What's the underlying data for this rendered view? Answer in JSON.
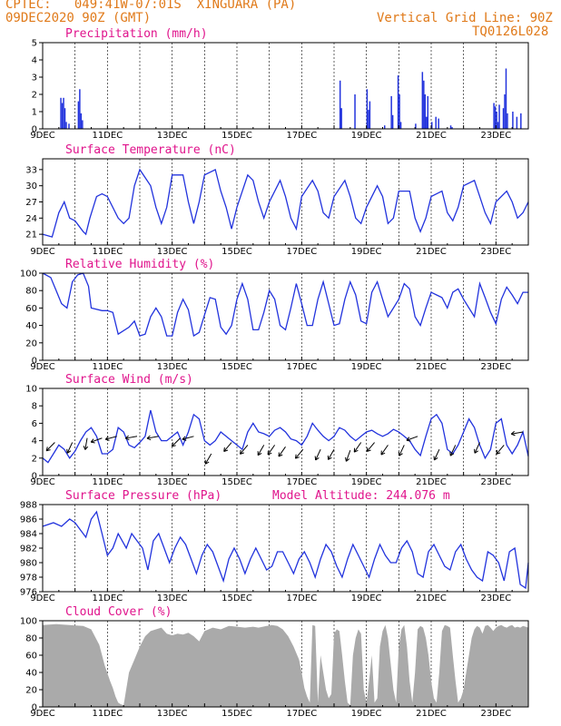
{
  "header": {
    "line1": "CPTEC:   049:41W-07:01S  XINGUARA (PA)",
    "line2": "09DEC2020 90Z (GMT)",
    "grid_note": "Vertical Grid Line: 90Z",
    "code": "TQ0126L028"
  },
  "colors": {
    "header": "#e07a1a",
    "title": "#e0148c",
    "series": "#2233dd",
    "cloud": "#aaaaaa"
  },
  "x_labels": [
    "9DEC",
    "11DEC",
    "13DEC",
    "15DEC",
    "17DEC",
    "19DEC",
    "21DEC",
    "23DEC"
  ],
  "chart_data": [
    {
      "type": "bar",
      "title": "Precipitation (mm/h)",
      "ylim": [
        0,
        5
      ],
      "yticks": [
        0,
        1,
        2,
        3,
        4,
        5
      ],
      "hours": 360,
      "bars": [
        [
          13,
          1.8
        ],
        [
          14,
          1.5
        ],
        [
          15,
          1.8
        ],
        [
          16,
          1.2
        ],
        [
          17,
          0.4
        ],
        [
          19,
          0.3
        ],
        [
          26,
          1.6
        ],
        [
          27,
          2.3
        ],
        [
          28,
          0.9
        ],
        [
          29,
          0.5
        ],
        [
          220,
          2.8
        ],
        [
          221,
          1.2
        ],
        [
          231,
          2.0
        ],
        [
          240,
          2.3
        ],
        [
          241,
          1.1
        ],
        [
          242,
          1.6
        ],
        [
          253,
          0.2
        ],
        [
          258,
          1.9
        ],
        [
          259,
          0.8
        ],
        [
          263,
          3.1
        ],
        [
          264,
          2.0
        ],
        [
          265,
          0.4
        ],
        [
          276,
          0.3
        ],
        [
          281,
          3.3
        ],
        [
          282,
          2.8
        ],
        [
          283,
          2.0
        ],
        [
          284,
          0.7
        ],
        [
          285,
          1.9
        ],
        [
          288,
          0.4
        ],
        [
          291,
          0.7
        ],
        [
          293,
          0.6
        ],
        [
          302,
          0.2
        ],
        [
          303,
          0.1
        ],
        [
          334,
          1.5
        ],
        [
          335,
          1.3
        ],
        [
          336,
          1.0
        ],
        [
          337,
          0.4
        ],
        [
          338,
          1.4
        ],
        [
          341,
          1.2
        ],
        [
          342,
          2.0
        ],
        [
          343,
          3.5
        ],
        [
          344,
          0.9
        ],
        [
          348,
          1.0
        ],
        [
          351,
          0.7
        ],
        [
          354,
          0.9
        ]
      ]
    },
    {
      "type": "line",
      "title": "Surface Temperature (nC)",
      "ylim": [
        19,
        35
      ],
      "yticks": [
        21,
        24,
        27,
        30,
        33
      ],
      "x": [
        0,
        7,
        12,
        16,
        20,
        24,
        27,
        30,
        32,
        35,
        40,
        44,
        48,
        56,
        60,
        64,
        68,
        72,
        80,
        84,
        88,
        92,
        96,
        104,
        108,
        112,
        116,
        120,
        128,
        132,
        136,
        140,
        144,
        152,
        156,
        160,
        164,
        168,
        176,
        180,
        184,
        188,
        192,
        200,
        204,
        208,
        212,
        216,
        224,
        228,
        232,
        236,
        240,
        248,
        252,
        256,
        260,
        264,
        272,
        276,
        280,
        284,
        288,
        296,
        300,
        304,
        308,
        312,
        320,
        324,
        328,
        332,
        336,
        344,
        348,
        352,
        356,
        360
      ],
      "y": [
        21,
        20.5,
        25,
        27,
        24,
        23.5,
        22.5,
        21.5,
        21,
        24,
        28,
        28.5,
        28,
        24,
        23,
        24,
        30,
        33,
        30,
        26,
        23,
        26,
        32,
        32,
        27,
        23,
        27,
        32,
        33,
        29,
        26,
        22,
        26,
        32,
        31,
        27,
        24,
        27,
        31,
        28,
        24,
        22,
        28,
        31,
        29,
        25,
        24,
        28,
        31,
        28,
        24,
        23,
        26,
        30,
        28,
        23,
        24,
        29,
        29,
        24,
        21.5,
        24,
        28,
        29,
        25,
        23.5,
        26,
        30,
        31,
        28,
        25,
        23,
        27,
        29,
        27,
        24,
        25,
        27
      ]
    },
    {
      "type": "line",
      "title": "Relative Humidity (%)",
      "ylim": [
        0,
        100
      ],
      "yticks": [
        0,
        20,
        40,
        60,
        80,
        100
      ],
      "x": [
        0,
        6,
        10,
        14,
        18,
        22,
        26,
        30,
        34,
        36,
        44,
        48,
        52,
        56,
        64,
        68,
        72,
        76,
        80,
        84,
        88,
        92,
        96,
        100,
        104,
        108,
        112,
        116,
        120,
        124,
        128,
        132,
        136,
        140,
        144,
        148,
        152,
        156,
        160,
        164,
        168,
        172,
        176,
        180,
        184,
        188,
        192,
        196,
        200,
        204,
        208,
        212,
        216,
        220,
        224,
        228,
        232,
        236,
        240,
        244,
        248,
        252,
        256,
        260,
        264,
        268,
        272,
        276,
        280,
        284,
        288,
        292,
        296,
        300,
        304,
        308,
        312,
        316,
        320,
        324,
        328,
        332,
        336,
        340,
        344,
        348,
        352,
        356,
        360
      ],
      "y": [
        100,
        95,
        80,
        65,
        60,
        90,
        98,
        100,
        85,
        60,
        57,
        57,
        55,
        30,
        38,
        45,
        28,
        30,
        50,
        60,
        50,
        28,
        28,
        55,
        70,
        58,
        28,
        32,
        52,
        72,
        70,
        38,
        30,
        40,
        70,
        88,
        70,
        35,
        35,
        55,
        80,
        70,
        40,
        35,
        60,
        88,
        65,
        40,
        40,
        70,
        90,
        65,
        40,
        42,
        70,
        90,
        75,
        45,
        42,
        78,
        90,
        70,
        50,
        60,
        70,
        88,
        82,
        50,
        40,
        60,
        78,
        75,
        72,
        60,
        78,
        82,
        70,
        60,
        50,
        88,
        72,
        55,
        42,
        70,
        84,
        75,
        65,
        78,
        78
      ]
    },
    {
      "type": "line",
      "title": "Surface Wind (m/s)",
      "ylim": [
        0,
        10
      ],
      "yticks": [
        0,
        2,
        4,
        6,
        8,
        10
      ],
      "x": [
        0,
        4,
        8,
        12,
        16,
        20,
        24,
        28,
        32,
        36,
        40,
        44,
        48,
        52,
        56,
        60,
        64,
        68,
        72,
        76,
        80,
        84,
        88,
        92,
        96,
        100,
        104,
        108,
        112,
        116,
        120,
        124,
        128,
        132,
        136,
        140,
        144,
        148,
        152,
        156,
        160,
        164,
        168,
        172,
        176,
        180,
        184,
        188,
        192,
        196,
        200,
        204,
        208,
        212,
        216,
        220,
        224,
        228,
        232,
        236,
        240,
        244,
        248,
        252,
        256,
        260,
        264,
        268,
        272,
        276,
        280,
        284,
        288,
        292,
        296,
        300,
        304,
        308,
        312,
        316,
        320,
        324,
        328,
        332,
        336,
        340,
        344,
        348,
        352,
        356,
        360
      ],
      "y": [
        2,
        1.5,
        2.5,
        3.5,
        3,
        2,
        2.8,
        4,
        5,
        5.5,
        4.5,
        2.5,
        2.5,
        3,
        5.5,
        5,
        3.5,
        3.2,
        3.8,
        4.5,
        7.5,
        5,
        4,
        4,
        4.5,
        5,
        3.5,
        5,
        7,
        6.5,
        4,
        3.5,
        4,
        5,
        4.5,
        4,
        3.5,
        3,
        5,
        6,
        5,
        4.8,
        4.5,
        5.2,
        5.5,
        5,
        4.2,
        4,
        3.5,
        4.5,
        6,
        5.2,
        4.5,
        4,
        4.5,
        5.5,
        5.2,
        4.5,
        4,
        4.5,
        5,
        5.2,
        4.8,
        4.5,
        4.8,
        5.3,
        5,
        4.5,
        4,
        3,
        2.3,
        4.5,
        6.5,
        7,
        6,
        3,
        2.5,
        3.5,
        5,
        6.5,
        5.5,
        3.5,
        2,
        3,
        6,
        6.5,
        3.5,
        2.5,
        3.5,
        5,
        2.2
      ],
      "arrows": [
        [
          9,
          3.8,
          -135
        ],
        [
          22,
          3.8,
          -115
        ],
        [
          33,
          4.3,
          -100
        ],
        [
          44,
          4.3,
          -160
        ],
        [
          55,
          4.5,
          -165
        ],
        [
          70,
          4.5,
          -170
        ],
        [
          86,
          4.5,
          -170
        ],
        [
          102,
          4.3,
          -135
        ],
        [
          112,
          4.5,
          -165
        ],
        [
          125,
          2.5,
          -120
        ],
        [
          140,
          3.8,
          -130
        ],
        [
          152,
          3.5,
          -130
        ],
        [
          164,
          3.5,
          -120
        ],
        [
          172,
          3.5,
          -125
        ],
        [
          180,
          3.3,
          -125
        ],
        [
          193,
          3,
          -130
        ],
        [
          206,
          3,
          -115
        ],
        [
          216,
          3,
          -120
        ],
        [
          228,
          2.9,
          -110
        ],
        [
          236,
          3.8,
          -125
        ],
        [
          246,
          3.8,
          -130
        ],
        [
          256,
          3.5,
          -125
        ],
        [
          268,
          3.5,
          -115
        ],
        [
          278,
          4.5,
          -160
        ],
        [
          294,
          3,
          -115
        ],
        [
          306,
          3.5,
          -115
        ],
        [
          324,
          3.8,
          -115
        ],
        [
          342,
          3.5,
          -130
        ],
        [
          356,
          5,
          -170
        ]
      ]
    },
    {
      "type": "line",
      "title": "Surface Pressure (hPa)",
      "subtitle": "Model Altitude: 244.076 m",
      "ylim": [
        976,
        988
      ],
      "yticks": [
        976,
        978,
        980,
        982,
        984,
        986,
        988
      ],
      "x": [
        0,
        8,
        14,
        20,
        24,
        28,
        32,
        36,
        40,
        44,
        48,
        52,
        56,
        62,
        66,
        70,
        74,
        78,
        82,
        86,
        90,
        94,
        98,
        102,
        106,
        110,
        114,
        118,
        122,
        126,
        130,
        134,
        138,
        142,
        146,
        150,
        154,
        158,
        162,
        166,
        170,
        174,
        178,
        182,
        186,
        190,
        194,
        198,
        202,
        206,
        210,
        214,
        218,
        222,
        226,
        230,
        234,
        238,
        242,
        246,
        250,
        254,
        258,
        262,
        266,
        270,
        274,
        278,
        282,
        286,
        290,
        294,
        298,
        302,
        306,
        310,
        314,
        318,
        322,
        326,
        330,
        334,
        338,
        342,
        346,
        350,
        354,
        358,
        360
      ],
      "y": [
        985,
        985.5,
        985,
        986,
        985.5,
        984.5,
        983.5,
        986,
        987,
        984,
        981,
        982,
        984,
        982,
        984,
        983,
        982,
        979,
        983,
        984,
        982,
        980,
        982,
        983.5,
        982.5,
        980.5,
        978.5,
        981,
        982.5,
        981.5,
        979.5,
        977.5,
        980.5,
        982,
        980.5,
        978.5,
        980.5,
        982,
        980.5,
        979,
        979.5,
        981.5,
        981.5,
        980,
        978.5,
        980.5,
        981.5,
        980,
        978,
        980.5,
        982.5,
        981.5,
        979.5,
        978,
        980.5,
        982.5,
        981,
        979.5,
        978,
        980.5,
        982.5,
        981,
        980,
        980,
        982,
        983,
        981.5,
        978.5,
        978,
        981.5,
        982.5,
        981,
        979.5,
        979,
        981.5,
        982.5,
        980.5,
        979,
        978,
        977.5,
        981.5,
        981,
        980,
        977.5,
        981.5,
        982,
        977,
        976.5,
        980
      ]
    },
    {
      "type": "area",
      "title": "Cloud Cover (%)",
      "ylim": [
        0,
        100
      ],
      "yticks": [
        0,
        20,
        40,
        60,
        80,
        100
      ],
      "x": [
        0,
        10,
        20,
        30,
        36,
        42,
        46,
        50,
        52,
        54,
        56,
        58,
        60,
        64,
        68,
        72,
        76,
        80,
        84,
        88,
        92,
        96,
        100,
        104,
        108,
        112,
        116,
        120,
        126,
        132,
        138,
        144,
        150,
        156,
        160,
        166,
        170,
        174,
        178,
        182,
        186,
        190,
        192,
        194,
        196,
        198,
        200,
        202,
        204,
        206,
        208,
        210,
        212,
        214,
        216,
        218,
        220,
        222,
        224,
        226,
        228,
        230,
        232,
        234,
        236,
        238,
        240,
        242,
        244,
        246,
        248,
        250,
        252,
        254,
        256,
        258,
        260,
        262,
        264,
        266,
        268,
        270,
        272,
        274,
        276,
        278,
        280,
        282,
        284,
        286,
        288,
        290,
        292,
        294,
        296,
        298,
        300,
        302,
        304,
        306,
        308,
        310,
        312,
        314,
        316,
        318,
        320,
        322,
        324,
        326,
        328,
        330,
        332,
        334,
        336,
        338,
        340,
        342,
        344,
        346,
        348,
        350,
        352,
        354,
        356,
        358,
        360
      ],
      "y": [
        95,
        96,
        95,
        94,
        90,
        72,
        48,
        30,
        22,
        12,
        5,
        3,
        2,
        40,
        55,
        70,
        82,
        88,
        90,
        92,
        85,
        83,
        85,
        84,
        86,
        82,
        76,
        88,
        92,
        90,
        94,
        93,
        92,
        93,
        92,
        94,
        95,
        94,
        90,
        82,
        70,
        55,
        40,
        22,
        12,
        5,
        95,
        94,
        5,
        60,
        40,
        20,
        10,
        15,
        85,
        90,
        88,
        60,
        30,
        5,
        2,
        60,
        80,
        90,
        85,
        20,
        5,
        30,
        60,
        5,
        10,
        70,
        88,
        95,
        80,
        50,
        20,
        5,
        70,
        90,
        95,
        70,
        30,
        5,
        40,
        90,
        94,
        92,
        80,
        60,
        30,
        10,
        5,
        40,
        88,
        95,
        94,
        92,
        60,
        30,
        5,
        10,
        20,
        40,
        60,
        80,
        90,
        94,
        92,
        85,
        94,
        95,
        92,
        88,
        92,
        94,
        95,
        93,
        92,
        94,
        95,
        92,
        93,
        92,
        94,
        93,
        92
      ]
    }
  ]
}
